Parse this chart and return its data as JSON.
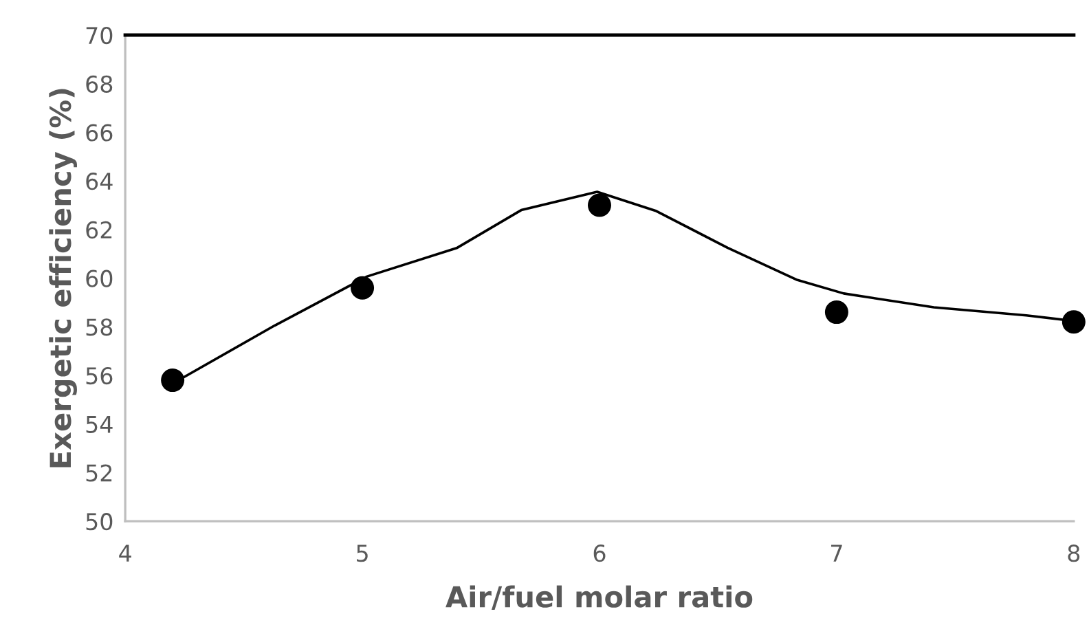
{
  "chart_data": {
    "type": "scatter",
    "xlabel": "Air/fuel molar ratio",
    "ylabel": "Exergetic efficiency (%)",
    "xlim": [
      4,
      8
    ],
    "xticks": [
      4,
      5,
      6,
      7,
      8
    ],
    "ylim": [
      50,
      70
    ],
    "yticks": [
      50,
      52,
      54,
      56,
      58,
      60,
      62,
      64,
      66,
      68,
      70
    ],
    "grid": false,
    "legend": false,
    "series": [
      {
        "color": "#000000",
        "marker": "circle",
        "x": [
          4.2,
          5,
          6,
          7,
          8
        ],
        "values": [
          55.8,
          59.6,
          63.0,
          58.6,
          58.2
        ]
      },
      {
        "type": "line",
        "color": "#000000",
        "marker": "none",
        "line_style": "solid",
        "x": [
          4.17,
          4.63,
          5.02,
          5.4,
          5.67,
          5.99,
          6.24,
          6.54,
          6.83,
          7.03,
          7.41,
          7.8,
          7.99
        ],
        "values": [
          55.5,
          58.05,
          60.07,
          61.25,
          62.8,
          63.55,
          62.76,
          61.25,
          59.94,
          59.37,
          58.8,
          58.47,
          58.25
        ]
      }
    ]
  }
}
